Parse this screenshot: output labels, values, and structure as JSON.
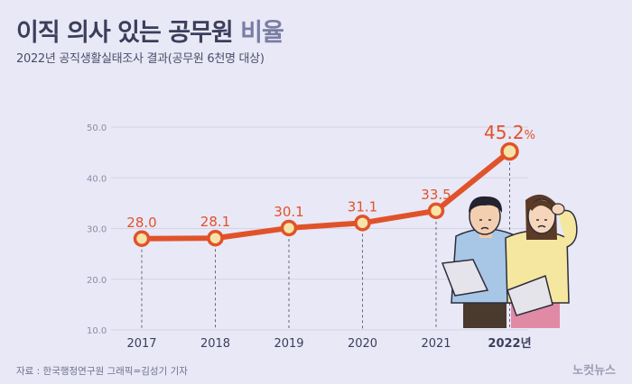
{
  "header": {
    "title_main": "이직 의사 있는 공무원",
    "title_accent": "비율",
    "subtitle": "2022년 공직생활실태조사 결과(공무원 6천명 대상)"
  },
  "chart_data": {
    "type": "line",
    "categories": [
      "2017",
      "2018",
      "2019",
      "2020",
      "2021",
      "2022년"
    ],
    "series": [
      {
        "values": [
          28.0,
          28.1,
          30.1,
          31.1,
          33.5,
          45.2
        ]
      }
    ],
    "value_labels": [
      "28.0",
      "28.1",
      "30.1",
      "31.1",
      "33.5",
      "45.2"
    ],
    "last_value_unit": "%",
    "ylim": [
      10,
      50
    ],
    "yticks": [
      "10.0",
      "20.0",
      "30.0",
      "40.0",
      "50.0"
    ],
    "grid": true,
    "colors": {
      "line": "#e0532a",
      "label": "#e0532a",
      "grid": "#d3d2e6",
      "tick": "#8a8ca8"
    }
  },
  "footer": {
    "source": "자료 : 한국행정연구원    그래픽=김성기 기자",
    "logo": "노컷뉴스"
  }
}
